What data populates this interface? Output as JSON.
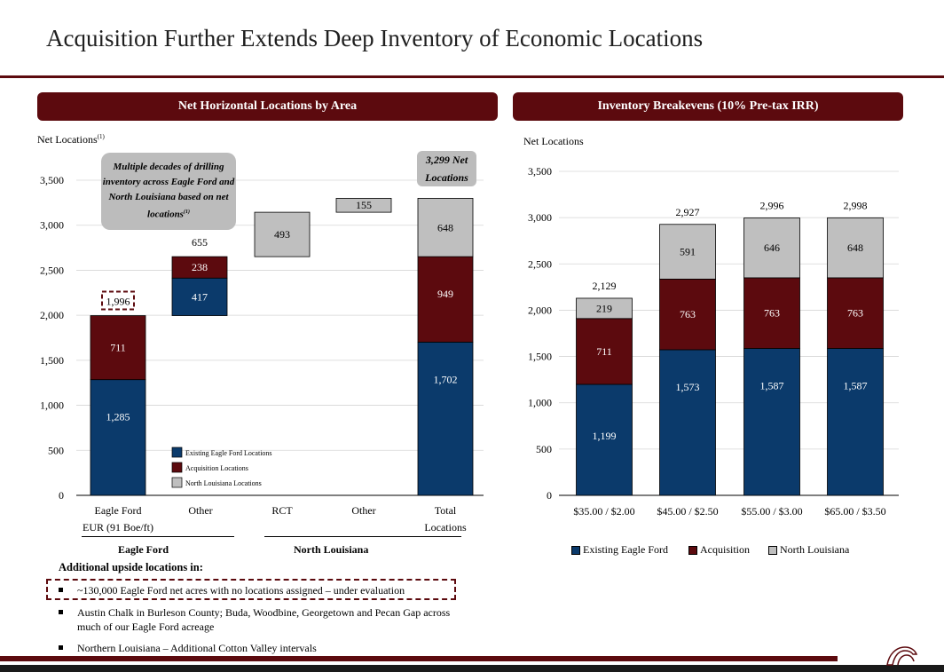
{
  "title": "Acquisition Further Extends Deep Inventory of Economic Locations",
  "left_panel": {
    "header": "Net Horizontal Locations by Area",
    "ylabel": "Net Locations",
    "ylabel_sup": "(1)",
    "callout": "Multiple decades of drilling inventory across Eagle Ford and North Louisiana based on net locations",
    "callout_sup": "(1)",
    "total_callout_line1": "3,299 Net",
    "total_callout_line2": "Locations",
    "groups": [
      "Eagle Ford",
      "North Louisiana"
    ]
  },
  "right_panel": {
    "header": "Inventory Breakevens (10% Pre-tax IRR)",
    "ylabel": "Net Locations"
  },
  "upside": {
    "title": "Additional upside locations in:",
    "bullets": [
      "~130,000 Eagle Ford net acres with no locations assigned – under evaluation",
      "Austin Chalk in Burleson County; Buda, Woodbine, Georgetown and Pecan Gap across much of our Eagle Ford acreage",
      "Northern Louisiana – Additional Cotton Valley intervals"
    ]
  },
  "colors": {
    "existing": "#0b3a6b",
    "acquisition": "#5c0a0e",
    "north_louisiana": "#bfbfbf",
    "brand": "#5c0a0e"
  },
  "chart_data": [
    {
      "type": "bar",
      "title": "Net Horizontal Locations by Area",
      "ylabel": "Net Locations",
      "ylim": [
        0,
        3500
      ],
      "yticks": [
        "0",
        "500",
        "1,000",
        "1,500",
        "2,000",
        "2,500",
        "3,000",
        "3,500"
      ],
      "grid": true,
      "legend_position": "bottom-left inside",
      "categories": [
        [
          "Eagle Ford",
          "EUR (91 Boe/ft)"
        ],
        [
          "Other"
        ],
        [
          "RCT"
        ],
        [
          "Other"
        ],
        [
          "Total",
          "Locations"
        ]
      ],
      "series": [
        {
          "name": "Existing Eagle Ford Locations",
          "color": "#0b3a6b"
        },
        {
          "name": "Acquisition Locations",
          "color": "#5c0a0e"
        },
        {
          "name": "North Louisiana Locations",
          "color": "#bfbfbf"
        }
      ],
      "bars": [
        {
          "segments": [
            {
              "series": 0,
              "base": 0,
              "value": 1285,
              "label": "1,285"
            },
            {
              "series": 1,
              "base": 1285,
              "value": 711,
              "label": "711"
            }
          ],
          "top_label": "1,996",
          "top_label_dashed": true
        },
        {
          "segments": [
            {
              "series": 0,
              "base": 1996,
              "value": 417,
              "label": "417"
            },
            {
              "series": 1,
              "base": 2413,
              "value": 238,
              "label": "238"
            }
          ],
          "top_label": "655"
        },
        {
          "segments": [
            {
              "series": 2,
              "base": 2651,
              "value": 493,
              "label": "493"
            }
          ]
        },
        {
          "segments": [
            {
              "series": 2,
              "base": 3144,
              "value": 155,
              "label": "155"
            }
          ]
        },
        {
          "segments": [
            {
              "series": 0,
              "base": 0,
              "value": 1702,
              "label": "1,702"
            },
            {
              "series": 1,
              "base": 1702,
              "value": 949,
              "label": "949"
            },
            {
              "series": 2,
              "base": 2651,
              "value": 648,
              "label": "648"
            }
          ]
        }
      ]
    },
    {
      "type": "bar",
      "title": "Inventory Breakevens (10% Pre-tax IRR)",
      "ylabel": "Net Locations",
      "ylim": [
        0,
        3500
      ],
      "yticks": [
        "0",
        "500",
        "1,000",
        "1,500",
        "2,000",
        "2,500",
        "3,000",
        "3,500"
      ],
      "grid": true,
      "legend_position": "bottom",
      "categories": [
        "$35.00 / $2.00",
        "$45.00 / $2.50",
        "$55.00 / $3.00",
        "$65.00 / $3.50"
      ],
      "series": [
        {
          "name": "Existing Eagle Ford",
          "color": "#0b3a6b",
          "values": [
            1199,
            1573,
            1587,
            1587
          ]
        },
        {
          "name": "Acquisition",
          "color": "#5c0a0e",
          "values": [
            711,
            763,
            763,
            763
          ]
        },
        {
          "name": "North Louisiana",
          "color": "#bfbfbf",
          "values": [
            219,
            591,
            646,
            648
          ]
        }
      ],
      "totals": [
        "2,129",
        "2,927",
        "2,996",
        "2,998"
      ],
      "segment_labels": [
        [
          "1,199",
          "1,573",
          "1,587",
          "1,587"
        ],
        [
          "711",
          "763",
          "763",
          "763"
        ],
        [
          "219",
          "591",
          "646",
          "648"
        ]
      ]
    }
  ]
}
